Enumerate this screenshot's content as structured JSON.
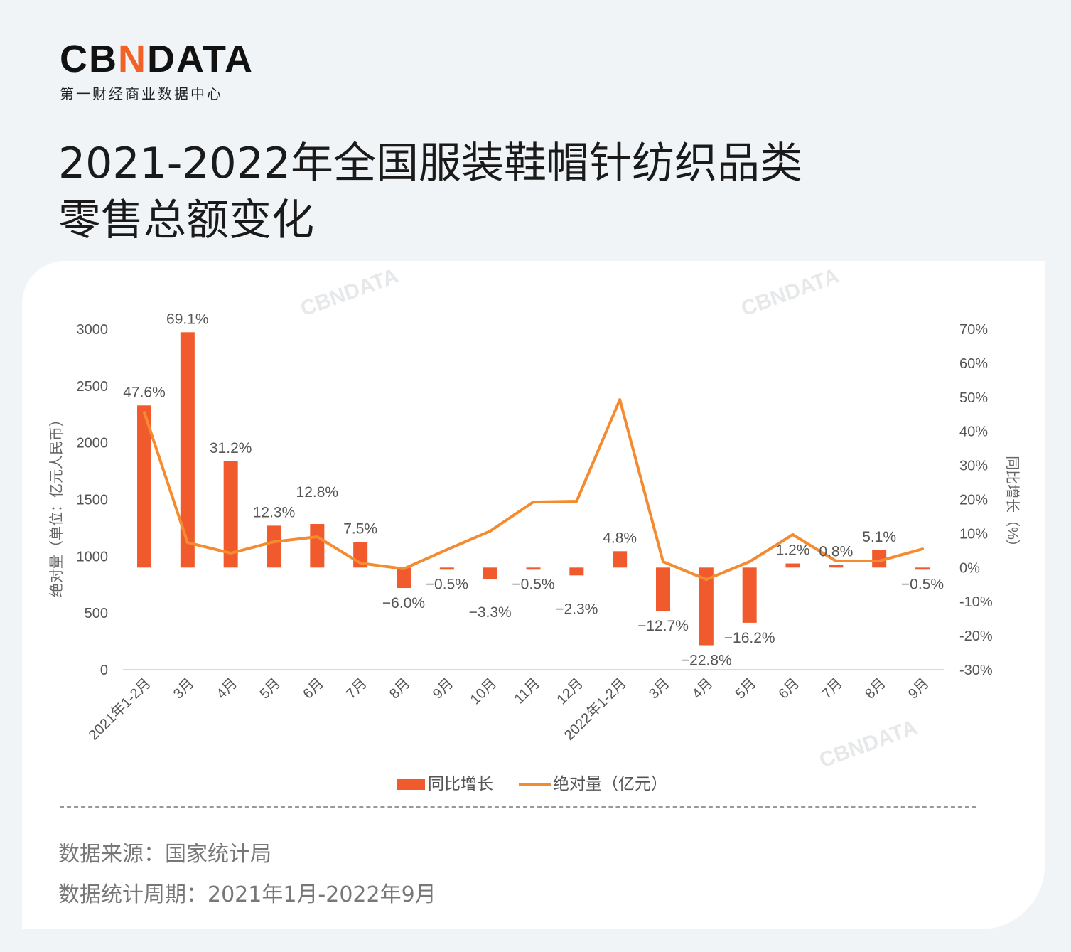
{
  "logo": {
    "brand_left": "CB",
    "brand_mark": "N",
    "brand_right": "DATA",
    "subtitle": "第一财经商业数据中心"
  },
  "title": {
    "line1": "2021-2022年全国服装鞋帽针纺织品类",
    "line2": "零售总额变化"
  },
  "watermark": "CBNDATA",
  "colors": {
    "bar": "#f15a2c",
    "line": "#f58b30",
    "accent": "#f26125",
    "axis": "#d9d9d9"
  },
  "chart_data": {
    "type": "bar+line",
    "categories": [
      "2021年1-2月",
      "3月",
      "4月",
      "5月",
      "6月",
      "7月",
      "8月",
      "9月",
      "10月",
      "11月",
      "12月",
      "2022年1-2月",
      "3月",
      "4月",
      "5月",
      "6月",
      "7月",
      "8月",
      "9月"
    ],
    "y_left": {
      "label": "绝对量（单位：亿元人民币）",
      "range": [
        0,
        3000
      ],
      "ticks": [
        "0",
        "500",
        "1000",
        "1500",
        "2000",
        "2500",
        "3000"
      ]
    },
    "y_right": {
      "label": "同比增长（%）",
      "range": [
        -30,
        70
      ],
      "ticks": [
        "-30%",
        "-20%",
        "-10%",
        "0%",
        "10%",
        "20%",
        "30%",
        "40%",
        "50%",
        "60%",
        "70%"
      ]
    },
    "series": [
      {
        "name": "同比增长",
        "type": "bar",
        "axis": "right",
        "values": [
          47.6,
          69.1,
          31.2,
          12.3,
          12.8,
          7.5,
          -6.0,
          -0.5,
          -3.3,
          -0.5,
          -2.3,
          4.8,
          -12.7,
          -22.8,
          -16.2,
          1.2,
          0.8,
          5.1,
          -0.5
        ],
        "labels": [
          "47.6%",
          "69.1%",
          "31.2%",
          "12.3%",
          "12.8%",
          "7.5%",
          "−6.0%",
          "−0.5%",
          "−3.3%",
          "−0.5%",
          "−2.3%",
          "4.8%",
          "−12.7%",
          "−22.8%",
          "−16.2%",
          "1.2%",
          "0.8%",
          "5.1%",
          "−0.5%"
        ]
      },
      {
        "name": "绝对量（亿元）",
        "type": "line",
        "axis": "left",
        "values": [
          2267,
          1121,
          1027,
          1127,
          1171,
          939,
          889,
          1058,
          1221,
          1478,
          1484,
          2379,
          952,
          795,
          952,
          1190,
          958,
          958,
          1064
        ]
      }
    ],
    "legend": "bottom",
    "grid": false
  },
  "footer": {
    "source": "数据来源：国家统计局",
    "period": "数据统计周期：2021年1月-2022年9月"
  }
}
